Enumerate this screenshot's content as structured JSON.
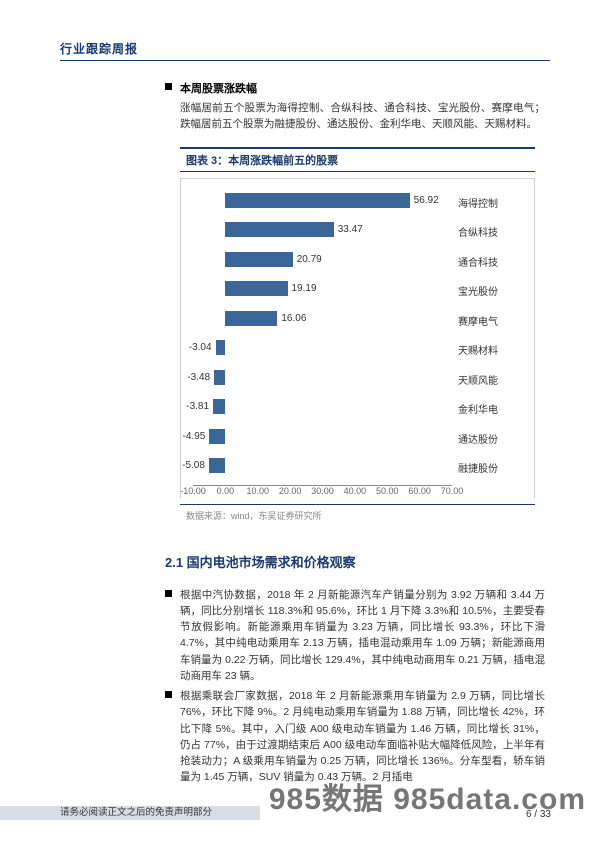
{
  "header": {
    "title": "行业跟踪周报"
  },
  "section1": {
    "bullet_title": "本周股票涨跌幅",
    "intro": "涨幅居前五个股票为海得控制、合纵科技、通合科技、宝光股份、赛摩电气；跌幅居前五个股票为融捷股份、通达股份、金利华电、天顺风能、天赐材料。"
  },
  "chart": {
    "title": "图表 3：本周涨跌幅前五的股票",
    "type": "bar-horizontal",
    "xlim": [
      -10,
      70
    ],
    "zero_pct": 12.5,
    "tick_labels": [
      "-10.00",
      "0.00",
      "10.00",
      "20.00",
      "30.00",
      "40.00",
      "50.00",
      "60.00",
      "70.00"
    ],
    "tick_pcts": [
      0,
      12.5,
      25,
      37.5,
      50,
      62.5,
      75,
      87.5,
      100
    ],
    "bar_color": "#3a6698",
    "bars": [
      {
        "name": "海得控制",
        "value": 56.92,
        "pct": 71.15
      },
      {
        "name": "合纵科技",
        "value": 33.47,
        "pct": 41.84
      },
      {
        "name": "通合科技",
        "value": 20.79,
        "pct": 25.99
      },
      {
        "name": "宝光股份",
        "value": 19.19,
        "pct": 23.99
      },
      {
        "name": "赛摩电气",
        "value": 16.06,
        "pct": 20.08
      },
      {
        "name": "天赐材料",
        "value": -3.04,
        "pct": 3.8
      },
      {
        "name": "天顺风能",
        "value": -3.48,
        "pct": 4.35
      },
      {
        "name": "金利华电",
        "value": -3.81,
        "pct": 4.76
      },
      {
        "name": "通达股份",
        "value": -4.95,
        "pct": 6.19
      },
      {
        "name": "融捷股份",
        "value": -5.08,
        "pct": 6.35
      }
    ],
    "source": "数据来源：wind，东吴证券研究所"
  },
  "section2": {
    "heading": "2.1  国内电池市场需求和价格观察",
    "bullets": [
      "根据中汽协数据，2018 年 2 月新能源汽车产销量分别为 3.92 万辆和 3.44 万辆，同比分别增长 118.3%和 95.6%，环比 1 月下降 3.3%和 10.5%，主要受春节放假影响。新能源乘用车销量为 3.23 万辆，同比增长 93.3%，环比下滑 4.7%，其中纯电动乘用车 2.13 万辆，插电混动乘用车 1.09 万辆；新能源商用车销量为 0.22 万辆，同比增长 129.4%，其中纯电动商用车 0.21 万辆，插电混动商用车 23 辆。",
      "根据乘联会厂家数据，2018 年 2 月新能源乘用车销量为 2.9 万辆，同比增长 76%，环比下降 9%。2 月纯电动乘用车销量为 1.88 万辆，同比增长 42%，环比下降 5%。其中，入门级 A00 级电动车销量为 1.46 万辆，同比增长 31%，仍占 77%，由于过渡期结束后 A00 级电动车面临补贴大幅降低风险，上半年有抢装动力；A 级乘用车销量为 0.25 万辆，同比增长 136%。分车型看，轿车销量为 1.45 万辆，SUV 销量为 0.43 万辆。2 月插电"
    ]
  },
  "footer": {
    "disclaimer": "请务必阅读正文之后的免责声明部分",
    "page": "6 / 33",
    "watermark": "985数据 985data.com"
  }
}
